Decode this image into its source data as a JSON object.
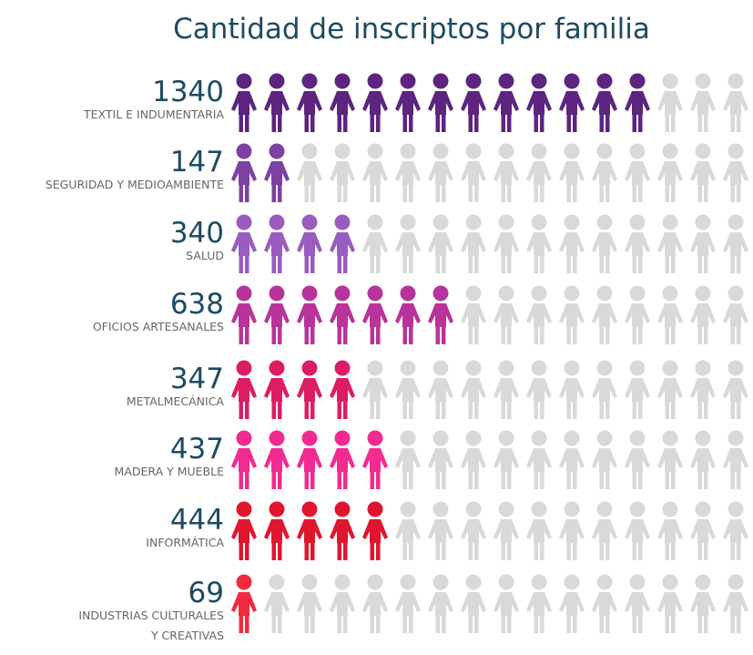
{
  "chart_data": {
    "type": "pictogram",
    "title": "Cantidad de inscriptos por familia",
    "categories": [
      [
        "TEXTIL E INDUMENTARIA"
      ],
      [
        "SEGURIDAD Y MEDIOAMBIENTE"
      ],
      [
        "SALUD"
      ],
      [
        "OFICIOS ARTESANALES"
      ],
      [
        "METALMECÁNICA"
      ],
      [
        "MADERA Y MUEBLE"
      ],
      [
        "INFORMÁTICA"
      ],
      [
        "INDUSTRIAS CULTURALES",
        "Y CREATIVAS"
      ]
    ],
    "values": [
      1340,
      147,
      340,
      638,
      347,
      437,
      444,
      69
    ],
    "filled": [
      13,
      2,
      4,
      7,
      4,
      5,
      5,
      1
    ],
    "icons_per_row": 16,
    "colors": [
      "#5d2480",
      "#7c41a3",
      "#9a5cbf",
      "#b8349b",
      "#dc1d66",
      "#f22b91",
      "#e0162f",
      "#f22a3f"
    ],
    "empty_color": "#d9d9d9"
  }
}
